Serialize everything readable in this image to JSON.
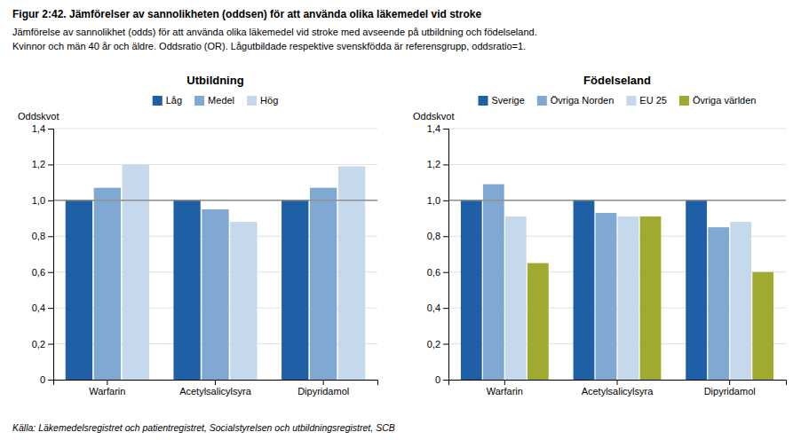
{
  "title": "Figur 2:42. Jämförelser av sannolikheten (oddsen) för att använda olika läkemedel vid stroke",
  "subtitle": [
    "Jämförelse av sannolikhet (odds) för att använda olika läkemedel vid stroke med avseende på utbildning och födelseland.",
    "Kvinnor och män 40 år och äldre. Oddsratio (OR). Lågutbildade respektive svenskfödda är referensgrupp, oddsratio=1."
  ],
  "footnote": "Källa: Läkemedelsregistret och patientregistret, Socialstyrelsen och utbildningsregistret, SCB",
  "chart_data": [
    {
      "type": "bar",
      "title": "Utbildning",
      "ylabel": "Oddskvot",
      "categories": [
        "Warfarin",
        "Acetylsalicylsyra",
        "Dipyridamol"
      ],
      "series": [
        {
          "name": "Låg",
          "color": "#1f5fa6",
          "values": [
            1.0,
            1.0,
            1.0
          ]
        },
        {
          "name": "Medel",
          "color": "#7fa8d2",
          "values": [
            1.07,
            0.95,
            1.07
          ]
        },
        {
          "name": "Hög",
          "color": "#c5d8ec",
          "values": [
            1.2,
            0.88,
            1.19
          ]
        }
      ],
      "ylim": [
        0,
        1.4
      ],
      "yticks": [
        0,
        {
          "value": 0.2,
          "label": "0,2"
        },
        {
          "value": 0.4,
          "label": "0,4"
        },
        {
          "value": 0.6,
          "label": "0,6"
        },
        {
          "value": 0.8,
          "label": "0,8"
        },
        {
          "value": 1.0,
          "label": "1,0"
        },
        {
          "value": 1.2,
          "label": "1,2"
        },
        {
          "value": 1.4,
          "label": "1,4"
        }
      ],
      "ref_line": 1.0,
      "grid": true,
      "legend": "top"
    },
    {
      "type": "bar",
      "title": "Födelseland",
      "ylabel": "Oddskvot",
      "categories": [
        "Warfarin",
        "Acetylsalicylsyra",
        "Dipyridamol"
      ],
      "series": [
        {
          "name": "Sverige",
          "color": "#1f5fa6",
          "values": [
            1.0,
            1.0,
            1.0
          ]
        },
        {
          "name": "Övriga Norden",
          "color": "#7fa8d2",
          "values": [
            1.09,
            0.93,
            0.85
          ]
        },
        {
          "name": "EU 25",
          "color": "#c5d8ec",
          "values": [
            0.91,
            0.91,
            0.88
          ]
        },
        {
          "name": "Övriga världen",
          "color": "#a0aa2e",
          "values": [
            0.65,
            0.91,
            0.6
          ]
        }
      ],
      "ylim": [
        0,
        1.4
      ],
      "yticks": [
        0,
        {
          "value": 0.2,
          "label": "0,2"
        },
        {
          "value": 0.4,
          "label": "0,4"
        },
        {
          "value": 0.6,
          "label": "0,6"
        },
        {
          "value": 0.8,
          "label": "0,8"
        },
        {
          "value": 1.0,
          "label": "1,0"
        },
        {
          "value": 1.2,
          "label": "1,2"
        },
        {
          "value": 1.4,
          "label": "1,4"
        }
      ],
      "ref_line": 1.0,
      "grid": true,
      "legend": "top"
    }
  ]
}
